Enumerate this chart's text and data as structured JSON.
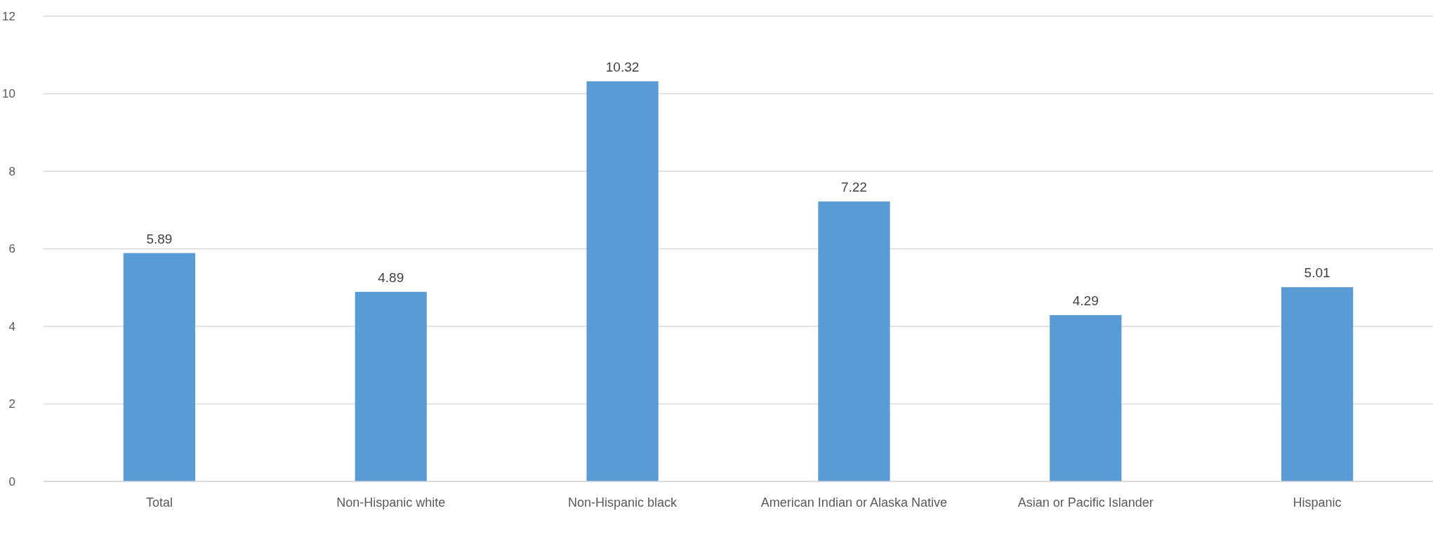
{
  "chart_data": {
    "type": "bar",
    "categories": [
      "Total",
      "Non-Hispanic white",
      "Non-Hispanic black",
      "American Indian or Alaska Native",
      "Asian or Pacific Islander",
      "Hispanic"
    ],
    "values": [
      5.89,
      4.89,
      10.32,
      7.22,
      4.29,
      5.01
    ],
    "color": "#5b9bd5",
    "ylim": [
      0,
      12
    ],
    "yticks": [
      0,
      2,
      4,
      6,
      8,
      10,
      12
    ],
    "grid": "y",
    "data_labels": true
  }
}
